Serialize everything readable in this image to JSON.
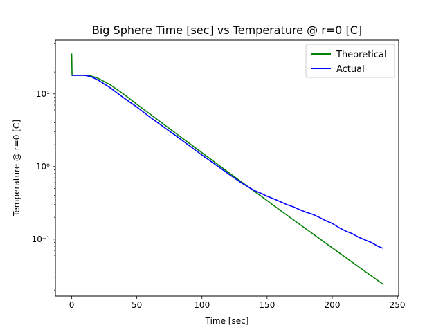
{
  "chart_data": {
    "type": "line",
    "title": "Big Sphere Time [sec] vs Temperature @ r=0 [C]",
    "xlabel": "Time [sec]",
    "ylabel": "Temperature @ r=0 [C]",
    "xlim": [
      -12.5,
      251
    ],
    "ylim": [
      0.0165,
      55
    ],
    "yscale": "log",
    "grid": false,
    "legend_position": "top-right",
    "x_ticks": [
      0,
      50,
      100,
      150,
      200,
      250
    ],
    "x_tick_labels": [
      "0",
      "50",
      "100",
      "150",
      "200",
      "250"
    ],
    "y_ticks": [
      0.1,
      1,
      10
    ],
    "y_tick_labels": [
      "10⁻¹",
      "10⁰",
      "10¹"
    ],
    "series": [
      {
        "name": "Theoretical",
        "color": "#008000",
        "x": [
          0,
          0.3,
          2,
          5,
          10,
          15,
          20,
          30,
          40,
          50,
          60,
          80,
          100,
          120,
          140,
          150,
          160,
          180,
          200,
          220,
          239
        ],
        "y": [
          36,
          18,
          18,
          18,
          18,
          17.6,
          16.5,
          13.2,
          9.9,
          7.2,
          5.3,
          2.86,
          1.55,
          0.84,
          0.46,
          0.34,
          0.25,
          0.138,
          0.076,
          0.042,
          0.024
        ]
      },
      {
        "name": "Actual",
        "color": "#0000ff",
        "x": [
          0,
          2,
          5,
          10,
          15,
          20,
          30,
          40,
          50,
          60,
          80,
          100,
          120,
          130,
          140,
          145,
          150,
          155,
          160,
          165,
          170,
          175,
          180,
          185,
          190,
          195,
          200,
          205,
          210,
          215,
          220,
          225,
          230,
          235,
          239
        ],
        "y": [
          18,
          18,
          18,
          18,
          17.2,
          15.6,
          12.0,
          8.8,
          6.6,
          4.8,
          2.65,
          1.44,
          0.8,
          0.6,
          0.47,
          0.43,
          0.39,
          0.36,
          0.33,
          0.3,
          0.28,
          0.255,
          0.235,
          0.22,
          0.2,
          0.18,
          0.165,
          0.145,
          0.13,
          0.12,
          0.107,
          0.098,
          0.09,
          0.08,
          0.075
        ]
      }
    ]
  }
}
